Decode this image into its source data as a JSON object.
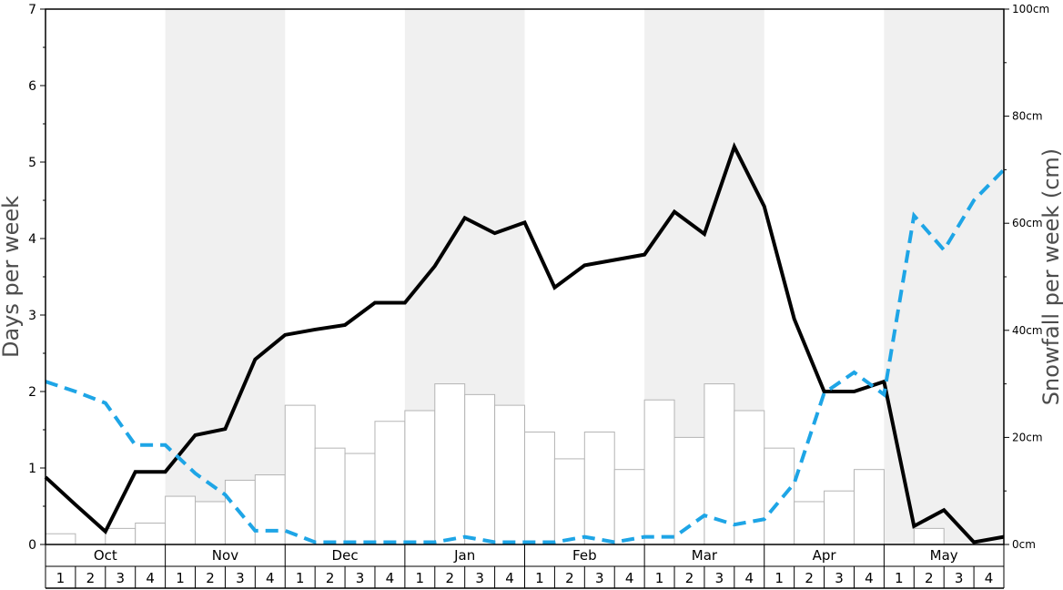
{
  "chart_data": {
    "type": "bar",
    "ylabel": "Days per week",
    "ylabel_right": "Snowfall per week (cm)",
    "ylim": [
      0,
      7
    ],
    "ylim_right": [
      0,
      100
    ],
    "yticks": [
      "0",
      "1",
      "2",
      "3",
      "4",
      "5",
      "6",
      "7"
    ],
    "yticks_right": [
      "0cm",
      "20cm",
      "40cm",
      "60cm",
      "80cm",
      "100cm"
    ],
    "months": [
      "Oct",
      "Nov",
      "Dec",
      "Jan",
      "Feb",
      "Mar",
      "Apr",
      "May"
    ],
    "week_labels": [
      "1",
      "2",
      "3",
      "4"
    ],
    "shaded_months": [
      "Nov",
      "Jan",
      "Mar",
      "May"
    ],
    "colors": {
      "shade": "#f0f0f0",
      "bar_edge": "#b4b4b4",
      "line_main": "#000000",
      "line_dashed": "#1ea5e6"
    },
    "series": [
      {
        "type": "bar",
        "axis": "right",
        "values": [
          2,
          0,
          3,
          4,
          9,
          8,
          12,
          13,
          26,
          18,
          17,
          23,
          25,
          30,
          28,
          26,
          21,
          16,
          21,
          14,
          27,
          20,
          30,
          25,
          18,
          8,
          10,
          14,
          0,
          3,
          0,
          0
        ]
      },
      {
        "type": "line",
        "axis": "left",
        "style": "solid",
        "values": [
          0.88,
          0.52,
          0.17,
          0.95,
          0.95,
          1.43,
          1.51,
          2.42,
          2.74,
          2.81,
          2.87,
          3.16,
          3.16,
          3.64,
          4.27,
          4.07,
          4.21,
          3.36,
          3.65,
          3.72,
          3.79,
          4.35,
          4.06,
          5.2,
          4.42,
          2.95,
          2.0,
          2.0,
          2.13,
          0.24,
          0.45,
          0.03,
          0.1
        ]
      },
      {
        "type": "line",
        "axis": "left",
        "style": "dashed",
        "values": [
          2.13,
          2.0,
          1.85,
          1.3,
          1.3,
          0.93,
          0.65,
          0.18,
          0.18,
          0.03,
          0.03,
          0.03,
          0.03,
          0.03,
          0.1,
          0.03,
          0.03,
          0.03,
          0.1,
          0.03,
          0.1,
          0.1,
          0.38,
          0.26,
          0.33,
          0.8,
          1.98,
          2.25,
          1.96,
          4.3,
          3.85,
          4.5,
          4.9
        ]
      }
    ]
  }
}
